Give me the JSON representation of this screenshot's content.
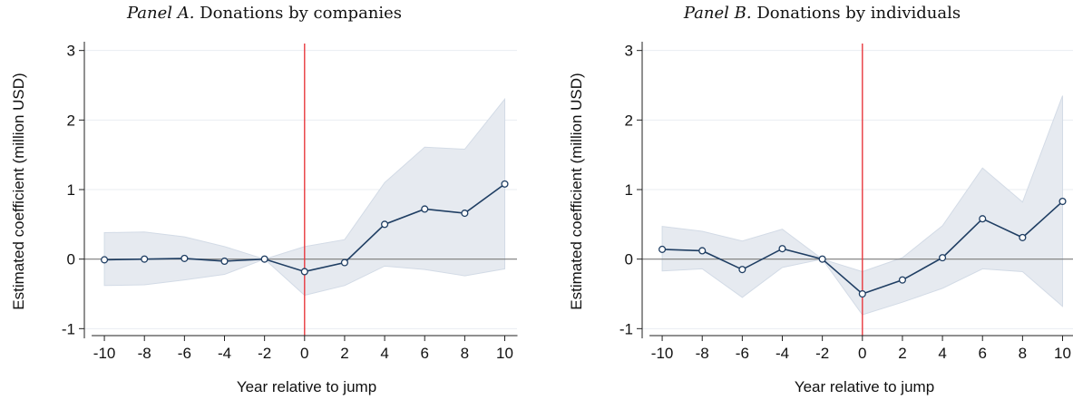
{
  "panels": [
    {
      "title_prefix": "Panel A.",
      "title_text": "Donations by companies",
      "ylabel": "Estimated coefficient (million USD)",
      "xlabel": "Year relative to jump"
    },
    {
      "title_prefix": "Panel B.",
      "title_text": "Donations by individuals",
      "ylabel": "Estimated coefficient (million USD)",
      "xlabel": "Year relative to jump"
    }
  ],
  "colors": {
    "line": "#1f3e63",
    "band": "#e6eaf0",
    "band_edge": "#d3dbe6",
    "event_line": "#e8393f",
    "zero_line": "#7a7a7a",
    "grid": "#e9edf2"
  },
  "chart_data": [
    {
      "type": "line",
      "title": "Panel A. Donations by companies",
      "xlabel": "Year relative to jump",
      "ylabel": "Estimated coefficient (million USD)",
      "x": [
        -10,
        -8,
        -6,
        -4,
        -2,
        0,
        2,
        4,
        6,
        8,
        10
      ],
      "x_ticks": [
        -10,
        -8,
        -6,
        -4,
        -2,
        0,
        2,
        4,
        6,
        8,
        10
      ],
      "y_ticks": [
        -1,
        0,
        1,
        2,
        3
      ],
      "xlim": [
        -11,
        11.2
      ],
      "ylim": [
        -1.1,
        3.1
      ],
      "event_x": 0,
      "grid": true,
      "series": [
        {
          "values": [
            -0.01,
            0.0,
            0.01,
            -0.03,
            0.0,
            -0.18,
            -0.05,
            0.5,
            0.72,
            0.66,
            1.08
          ],
          "ci_lower": [
            -0.38,
            -0.37,
            -0.3,
            -0.22,
            0.0,
            -0.52,
            -0.38,
            -0.1,
            -0.15,
            -0.24,
            -0.14
          ],
          "ci_upper": [
            0.38,
            0.39,
            0.32,
            0.18,
            0.0,
            0.18,
            0.28,
            1.1,
            1.61,
            1.58,
            2.3
          ]
        }
      ]
    },
    {
      "type": "line",
      "title": "Panel B. Donations by individuals",
      "xlabel": "Year relative to jump",
      "ylabel": "Estimated coefficient (million USD)",
      "x": [
        -10,
        -8,
        -6,
        -4,
        -2,
        0,
        2,
        4,
        6,
        8,
        10
      ],
      "x_ticks": [
        -10,
        -8,
        -6,
        -4,
        -2,
        0,
        2,
        4,
        6,
        8,
        10
      ],
      "y_ticks": [
        -1,
        0,
        1,
        2,
        3
      ],
      "xlim": [
        -11,
        11.2
      ],
      "ylim": [
        -1.1,
        3.1
      ],
      "event_x": 0,
      "grid": true,
      "series": [
        {
          "values": [
            0.14,
            0.12,
            -0.15,
            0.15,
            0.0,
            -0.5,
            -0.3,
            0.02,
            0.58,
            0.31,
            0.83
          ],
          "ci_lower": [
            -0.17,
            -0.14,
            -0.55,
            -0.12,
            0.0,
            -0.8,
            -0.62,
            -0.42,
            -0.14,
            -0.18,
            -0.68
          ],
          "ci_upper": [
            0.47,
            0.4,
            0.26,
            0.43,
            0.0,
            -0.18,
            0.02,
            0.48,
            1.31,
            0.82,
            2.35
          ]
        }
      ]
    }
  ]
}
